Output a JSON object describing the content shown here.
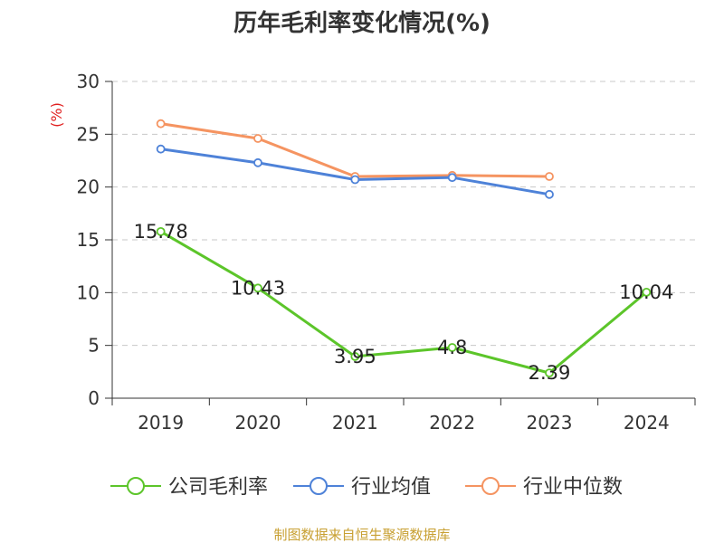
{
  "chart_data": {
    "type": "line",
    "title": "历年毛利率变化情况(%)",
    "ylabel": "(%)",
    "categories": [
      "2019",
      "2020",
      "2021",
      "2022",
      "2023",
      "2024"
    ],
    "ylim": [
      0,
      30
    ],
    "yticks": [
      0,
      5,
      10,
      15,
      20,
      25,
      30
    ],
    "grid": true,
    "legend_position": "bottom",
    "series": [
      {
        "name": "公司毛利率",
        "color": "#5cc52a",
        "values": [
          15.78,
          10.43,
          3.95,
          4.8,
          2.39,
          10.04
        ],
        "labels": [
          "15.78",
          "10.43",
          "3.95",
          "4.8",
          "2.39",
          "10.04"
        ]
      },
      {
        "name": "行业均值",
        "color": "#4e82d8",
        "values": [
          23.6,
          22.3,
          20.7,
          20.9,
          19.3,
          null
        ]
      },
      {
        "name": "行业中位数",
        "color": "#f59461",
        "values": [
          26.0,
          24.6,
          21.0,
          21.1,
          21.0,
          null
        ]
      }
    ]
  },
  "source": "制图数据来自恒生聚源数据库"
}
